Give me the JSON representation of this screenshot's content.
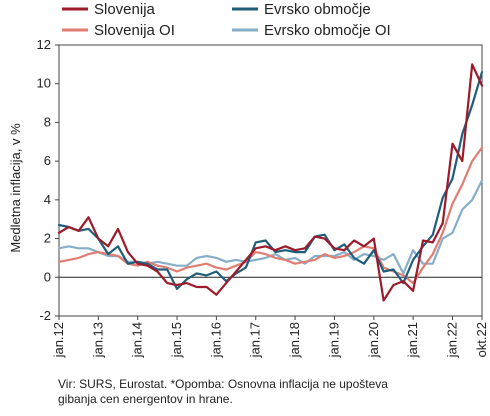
{
  "chart_data": {
    "type": "line",
    "title": "",
    "xlabel": "",
    "ylabel": "Medletna inflacija, v %",
    "ylim": [
      -2,
      12
    ],
    "yticks": [
      -2,
      0,
      2,
      4,
      6,
      8,
      10,
      12
    ],
    "xlim": [
      "2012-01",
      "2022-10"
    ],
    "xticks": [
      "jan.12",
      "jan.13",
      "jan.14",
      "jan.15",
      "jan.16",
      "jan.17",
      "jan.18",
      "jan.19",
      "jan.20",
      "jan.21",
      "jan.22",
      "okt.22"
    ],
    "grid": false,
    "legend_position": "top",
    "x": [
      "2012-01",
      "2012-04",
      "2012-07",
      "2012-10",
      "2013-01",
      "2013-04",
      "2013-07",
      "2013-10",
      "2014-01",
      "2014-04",
      "2014-07",
      "2014-10",
      "2015-01",
      "2015-04",
      "2015-07",
      "2015-10",
      "2016-01",
      "2016-04",
      "2016-07",
      "2016-10",
      "2017-01",
      "2017-04",
      "2017-07",
      "2017-10",
      "2018-01",
      "2018-04",
      "2018-07",
      "2018-10",
      "2019-01",
      "2019-04",
      "2019-07",
      "2019-10",
      "2020-01",
      "2020-04",
      "2020-07",
      "2020-10",
      "2021-01",
      "2021-04",
      "2021-07",
      "2021-10",
      "2022-01",
      "2022-04",
      "2022-07",
      "2022-10"
    ],
    "series": [
      {
        "name": "Slovenija",
        "color": "#9b1b2b",
        "values": [
          2.3,
          2.6,
          2.4,
          3.1,
          2.0,
          1.6,
          2.5,
          1.3,
          0.7,
          0.6,
          0.3,
          -0.3,
          -0.4,
          -0.3,
          -0.5,
          -0.5,
          -0.9,
          -0.3,
          0.3,
          0.9,
          1.5,
          1.6,
          1.4,
          1.6,
          1.4,
          1.5,
          2.1,
          2.0,
          1.5,
          1.4,
          1.9,
          1.6,
          2.0,
          -1.2,
          -0.4,
          -0.2,
          -0.7,
          1.9,
          1.8,
          2.8,
          6.9,
          6.0,
          11.0,
          9.9
        ]
      },
      {
        "name": "Evrsko območje",
        "color": "#1f5e7a",
        "values": [
          2.7,
          2.6,
          2.4,
          2.5,
          2.0,
          1.2,
          1.6,
          0.7,
          0.8,
          0.7,
          0.4,
          0.4,
          -0.6,
          -0.1,
          0.2,
          0.1,
          0.3,
          -0.2,
          0.2,
          0.5,
          1.8,
          1.9,
          1.3,
          1.4,
          1.3,
          1.3,
          2.1,
          2.2,
          1.4,
          1.7,
          1.0,
          0.7,
          1.4,
          0.3,
          0.4,
          -0.3,
          0.9,
          1.6,
          2.2,
          4.1,
          5.1,
          7.4,
          8.9,
          10.6
        ]
      },
      {
        "name": "Slovenija  OI",
        "color": "#e07d72",
        "values": [
          0.8,
          0.9,
          1.0,
          1.2,
          1.3,
          1.2,
          1.1,
          0.7,
          0.6,
          0.8,
          0.6,
          0.5,
          0.3,
          0.5,
          0.6,
          0.7,
          0.5,
          0.4,
          0.6,
          0.8,
          1.3,
          1.2,
          1.0,
          0.9,
          0.7,
          0.8,
          0.9,
          1.2,
          1.0,
          1.1,
          1.3,
          1.6,
          1.5,
          0.5,
          0.3,
          0.1,
          -0.3,
          0.5,
          1.2,
          2.3,
          3.8,
          4.8,
          6.0,
          6.7
        ]
      },
      {
        "name": "Evrsko območje OI",
        "color": "#86aec9",
        "values": [
          1.5,
          1.6,
          1.5,
          1.5,
          1.3,
          1.1,
          1.1,
          0.8,
          0.8,
          0.7,
          0.8,
          0.7,
          0.6,
          0.6,
          1.0,
          1.1,
          1.0,
          0.8,
          0.9,
          0.8,
          0.9,
          1.0,
          1.2,
          0.9,
          1.0,
          0.7,
          1.1,
          1.1,
          1.1,
          1.3,
          0.9,
          1.2,
          1.1,
          0.9,
          1.2,
          0.2,
          1.4,
          0.7,
          0.7,
          2.0,
          2.3,
          3.5,
          4.0,
          5.0
        ]
      }
    ]
  },
  "note": {
    "line1": "Vir: SURS, Eurostat. *Opomba: Osnovna inflacija ne upošteva",
    "line2": "gibanja cen energentov in hrane."
  }
}
